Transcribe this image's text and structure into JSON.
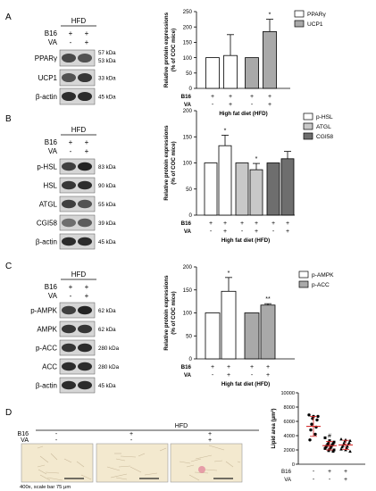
{
  "panels": [
    {
      "letter": "A",
      "blot": {
        "group": "HFD",
        "rows": [
          {
            "label": "B16",
            "marks": [
              "+",
              "+"
            ]
          },
          {
            "label": "VA",
            "marks": [
              "-",
              "+"
            ]
          }
        ],
        "bands": [
          {
            "name": "PPARγ",
            "kda": [
              "57 kDa",
              "53 kDa"
            ]
          },
          {
            "name": "UCP1",
            "kda": [
              "33 kDa"
            ]
          },
          {
            "name": "β-actin",
            "kda": [
              "45 kDa"
            ]
          }
        ]
      }
    },
    {
      "letter": "B",
      "blot": {
        "group": "HFD",
        "rows": [
          {
            "label": "B16",
            "marks": [
              "+",
              "+"
            ]
          },
          {
            "label": "VA",
            "marks": [
              "-",
              "+"
            ]
          }
        ],
        "bands": [
          {
            "name": "p-HSL",
            "kda": [
              "83 kDa"
            ]
          },
          {
            "name": "HSL",
            "kda": [
              "90 kDa"
            ]
          },
          {
            "name": "ATGL",
            "kda": [
              "55 kDa"
            ]
          },
          {
            "name": "CGI58",
            "kda": [
              "39 kDa"
            ]
          },
          {
            "name": "β-actin",
            "kda": [
              "45 kDa"
            ]
          }
        ]
      }
    },
    {
      "letter": "C",
      "blot": {
        "group": "HFD",
        "rows": [
          {
            "label": "B16",
            "marks": [
              "+",
              "+"
            ]
          },
          {
            "label": "VA",
            "marks": [
              "-",
              "+"
            ]
          }
        ],
        "bands": [
          {
            "name": "p-AMPK",
            "kda": [
              "62 kDa"
            ]
          },
          {
            "name": "AMPK",
            "kda": [
              "62 kDa"
            ]
          },
          {
            "name": "p-ACC",
            "kda": [
              "280 kDa"
            ]
          },
          {
            "name": "ACC",
            "kda": [
              "280 kDa"
            ]
          },
          {
            "name": "β-actin",
            "kda": [
              "45 kDa"
            ]
          }
        ]
      }
    },
    {
      "letter": "D",
      "histology": {
        "group": "HFD",
        "rows": [
          {
            "label": "B16",
            "marks": [
              "-",
              "+",
              "+"
            ]
          },
          {
            "label": "VA",
            "marks": [
              "-",
              "-",
              "+"
            ]
          }
        ],
        "caption": "400x, scale bar 75 μm"
      }
    }
  ],
  "chart_data": [
    {
      "type": "bar",
      "ylabel": "Relative protein expressions\n(% of COC mice)",
      "ylim": [
        0,
        250
      ],
      "yticks": [
        "0",
        "50",
        "100",
        "150",
        "200",
        "250"
      ],
      "xlabel": "High fat diet  (HFD)",
      "condition_rows": [
        {
          "label": "B16",
          "marks": [
            "+",
            "+",
            "+",
            "+"
          ]
        },
        {
          "label": "VA",
          "marks": [
            "-",
            "+",
            "-",
            "+"
          ]
        }
      ],
      "legend_position": "top-right",
      "series": [
        {
          "name": "PPARγ",
          "color": "#ffffff",
          "values": [
            100,
            107
          ],
          "errors": [
            0,
            68
          ],
          "sig": [
            "",
            ""
          ]
        },
        {
          "name": "UCP1",
          "color": "#a9a9a9",
          "values": [
            100,
            185
          ],
          "errors": [
            0,
            40
          ],
          "sig": [
            "",
            "*"
          ]
        }
      ]
    },
    {
      "type": "bar",
      "ylabel": "Relative protein expressions\n(% of COC mice)",
      "ylim": [
        0,
        200
      ],
      "yticks": [
        "0",
        "50",
        "100",
        "150",
        "200"
      ],
      "xlabel": "High fat diet  (HFD)",
      "condition_rows": [
        {
          "label": "B16",
          "marks": [
            "+",
            "+",
            "+",
            "+",
            "+",
            "+"
          ]
        },
        {
          "label": "VA",
          "marks": [
            "-",
            "+",
            "-",
            "+",
            "-",
            "+"
          ]
        }
      ],
      "legend_position": "top-right",
      "series": [
        {
          "name": "p-HSL",
          "color": "#ffffff",
          "values": [
            100,
            133
          ],
          "errors": [
            0,
            20
          ],
          "sig": [
            "",
            "*"
          ]
        },
        {
          "name": "ATGL",
          "color": "#c8c8c8",
          "values": [
            100,
            87
          ],
          "errors": [
            0,
            12
          ],
          "sig": [
            "",
            "*"
          ]
        },
        {
          "name": "CGI58",
          "color": "#6e6e6e",
          "values": [
            100,
            108
          ],
          "errors": [
            0,
            14
          ],
          "sig": [
            "",
            ""
          ]
        }
      ]
    },
    {
      "type": "bar",
      "ylabel": "Relative protein expressions\n(% of COC mice)",
      "ylim": [
        0,
        200
      ],
      "yticks": [
        "0",
        "50",
        "100",
        "150",
        "200"
      ],
      "xlabel": "High fat diet  (HFD)",
      "condition_rows": [
        {
          "label": "B16",
          "marks": [
            "+",
            "+",
            "+",
            "+"
          ]
        },
        {
          "label": "VA",
          "marks": [
            "-",
            "+",
            "-",
            "+"
          ]
        }
      ],
      "legend_position": "top-right",
      "series": [
        {
          "name": "p-AMPK",
          "color": "#ffffff",
          "values": [
            100,
            147
          ],
          "errors": [
            0,
            30
          ],
          "sig": [
            "",
            "*"
          ]
        },
        {
          "name": "p-ACC",
          "color": "#a9a9a9",
          "values": [
            100,
            117
          ],
          "errors": [
            0,
            3
          ],
          "sig": [
            "",
            "**"
          ]
        }
      ]
    },
    {
      "type": "scatter",
      "ylabel": "Lipid area (μm²)",
      "ylim": [
        0,
        10000
      ],
      "yticks": [
        "0",
        "2000",
        "4000",
        "6000",
        "8000",
        "10000"
      ],
      "condition_rows": [
        {
          "label": "B16",
          "marks": [
            "-",
            "+",
            "+"
          ]
        },
        {
          "label": "VA",
          "marks": [
            "-",
            "-",
            "+"
          ]
        }
      ],
      "groups": [
        {
          "color": "#000000",
          "marker": "circle",
          "mean": 5300,
          "sd": 1400,
          "sig": "",
          "points": [
            6900,
            6700,
            6700,
            6400,
            6200,
            5600,
            5200,
            4800,
            4200,
            3400
          ]
        },
        {
          "color": "#000000",
          "marker": "square",
          "mean": 2600,
          "sd": 600,
          "sig": "#",
          "points": [
            3700,
            3300,
            3100,
            3000,
            2900,
            2800,
            2700,
            2600,
            2500,
            2400,
            2300,
            2200,
            2100,
            2000,
            1900,
            1800
          ]
        },
        {
          "color": "#000000",
          "marker": "triangle",
          "mean": 2700,
          "sd": 650,
          "sig": "",
          "points": [
            3500,
            3400,
            3300,
            3200,
            3000,
            2900,
            2800,
            2600,
            2500,
            2400,
            2300,
            2100,
            2000,
            1800
          ]
        }
      ]
    }
  ]
}
